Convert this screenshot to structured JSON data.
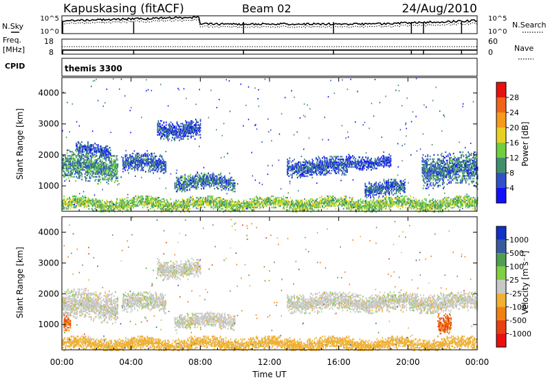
{
  "header": {
    "station": "Kapuskasing (fitACF)",
    "beam": "Beam 02",
    "date": "24/Aug/2010"
  },
  "strip_labels": {
    "nsky": "N.Sky",
    "nsky_top": "10^5",
    "nsky_bot": "10^0",
    "nsearch": "N.Search",
    "nsearch_top": "10^5",
    "nsearch_bot": "10^0",
    "freq_label_1": "Freq.",
    "freq_label_2": "[MHz]",
    "freq_top": "18",
    "freq_bot": "8",
    "nave": "Nave",
    "nave_top": "60",
    "nave_bot": "0",
    "cpid": "CPID",
    "cpid_value": "themis 3300"
  },
  "axis": {
    "ylabel": "Slant Range [km]",
    "xlabel": "Time UT",
    "range_ticks": [
      "1000",
      "2000",
      "3000",
      "4000"
    ],
    "time_ticks": [
      "00:00",
      "04:00",
      "08:00",
      "12:00",
      "16:00",
      "20:00",
      "00:00"
    ]
  },
  "colorbars": {
    "power": {
      "label": "Power [dB]",
      "ticks": [
        "4",
        "8",
        "12",
        "16",
        "20",
        "24",
        "28"
      ],
      "colors": [
        "#1010ff",
        "#3050c8",
        "#3f8f6f",
        "#6fcf3f",
        "#e8d020",
        "#f59a1a",
        "#f0641a",
        "#e81010"
      ]
    },
    "velocity": {
      "label": "Velocity [m s⁻¹]",
      "ticks": [
        "1000",
        "500",
        "100",
        "25",
        "-25",
        "-100",
        "-500",
        "-1000"
      ],
      "colors": [
        "#1030c8",
        "#3a5aa0",
        "#4f9f4f",
        "#7fd040",
        "#c8c8c8",
        "#f0b030",
        "#f08010",
        "#e84010",
        "#e81010"
      ]
    }
  },
  "chart_data": [
    {
      "type": "heatmap",
      "title": "Power",
      "xlabel": "Time UT",
      "ylabel": "Slant Range [km]",
      "xlim": [
        "00:00",
        "24:00"
      ],
      "ylim": [
        180,
        4500
      ],
      "colorbar": "Power [dB]",
      "bands": [
        {
          "t0": 0.0,
          "t1": 3.2,
          "r_center": 1600,
          "r_width": 550,
          "value_db": 10
        },
        {
          "t0": 0.8,
          "t1": 2.8,
          "r_center": 2150,
          "r_width": 250,
          "value_db": 6
        },
        {
          "t0": 3.5,
          "t1": 6.0,
          "r_center": 1700,
          "r_width": 350,
          "value_db": 7
        },
        {
          "t0": 5.5,
          "t1": 8.0,
          "r_center": 2800,
          "r_width": 350,
          "value_db": 6
        },
        {
          "t0": 6.5,
          "t1": 10.0,
          "r_center": 1100,
          "r_width": 300,
          "value_db": 8
        },
        {
          "t0": 13.0,
          "t1": 16.5,
          "r_center": 1600,
          "r_width": 350,
          "value_db": 6
        },
        {
          "t0": 16.5,
          "t1": 19.0,
          "r_center": 1750,
          "r_width": 250,
          "value_db": 5
        },
        {
          "t0": 17.5,
          "t1": 19.8,
          "r_center": 900,
          "r_width": 300,
          "value_db": 7
        },
        {
          "t0": 20.8,
          "t1": 24.0,
          "r_center": 1500,
          "r_width": 600,
          "value_db": 8
        },
        {
          "t0": 0.0,
          "t1": 24.0,
          "r_center": 400,
          "r_width": 250,
          "value_db": 14
        }
      ]
    },
    {
      "type": "heatmap",
      "title": "Velocity",
      "xlabel": "Time UT",
      "ylabel": "Slant Range [km]",
      "xlim": [
        "00:00",
        "24:00"
      ],
      "ylim": [
        180,
        4500
      ],
      "colorbar": "Velocity [m s⁻¹]",
      "bands": [
        {
          "t0": 0.0,
          "t1": 3.2,
          "r_center": 1600,
          "r_width": 550,
          "value_ms": 0
        },
        {
          "t0": 0.1,
          "t1": 0.5,
          "r_center": 1000,
          "r_width": 300,
          "value_ms": -500
        },
        {
          "t0": 3.5,
          "t1": 6.0,
          "r_center": 1700,
          "r_width": 350,
          "value_ms": 0
        },
        {
          "t0": 5.5,
          "t1": 8.0,
          "r_center": 2800,
          "r_width": 350,
          "value_ms": 0
        },
        {
          "t0": 6.5,
          "t1": 10.0,
          "r_center": 1100,
          "r_width": 300,
          "value_ms": 0
        },
        {
          "t0": 13.0,
          "t1": 24.0,
          "r_center": 1700,
          "r_width": 350,
          "value_ms": 0
        },
        {
          "t0": 21.7,
          "t1": 22.5,
          "r_center": 1000,
          "r_width": 400,
          "value_ms": -500
        },
        {
          "t0": 0.0,
          "t1": 24.0,
          "r_center": 350,
          "r_width": 250,
          "value_ms": -50
        }
      ]
    }
  ]
}
